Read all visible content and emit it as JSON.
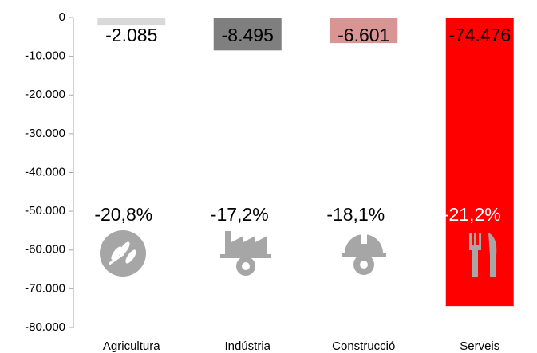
{
  "chart_data": {
    "type": "bar",
    "categories": [
      "Agricultura",
      "Indústria",
      "Construcció",
      "Serveis"
    ],
    "values": [
      -2085,
      -8495,
      -6601,
      -74476
    ],
    "value_labels": [
      "-2.085",
      "-8.495",
      "-6.601",
      "-74.476"
    ],
    "colors": [
      "#d9d9d9",
      "#7f7f7f",
      "#d99594",
      "#ff0000"
    ],
    "annotations": [
      "-20,8%",
      "-17,2%",
      "-18,1%",
      "-21,2%"
    ],
    "annotation_colors": [
      "#000000",
      "#000000",
      "#000000",
      "#ffffff"
    ],
    "ylim": [
      -80000,
      0
    ],
    "yticks": [
      0,
      {
        "value": -10000,
        "label": "-10.000"
      },
      {
        "value": -20000,
        "label": "-20.000"
      },
      {
        "value": -30000,
        "label": "-30.000"
      },
      {
        "value": -40000,
        "label": "-40.000"
      },
      {
        "value": -50000,
        "label": "-50.000"
      },
      {
        "value": -60000,
        "label": "-60.000"
      },
      {
        "value": -70000,
        "label": "-70.000"
      },
      {
        "value": -80000,
        "label": "-80.000"
      }
    ],
    "grid": false
  }
}
